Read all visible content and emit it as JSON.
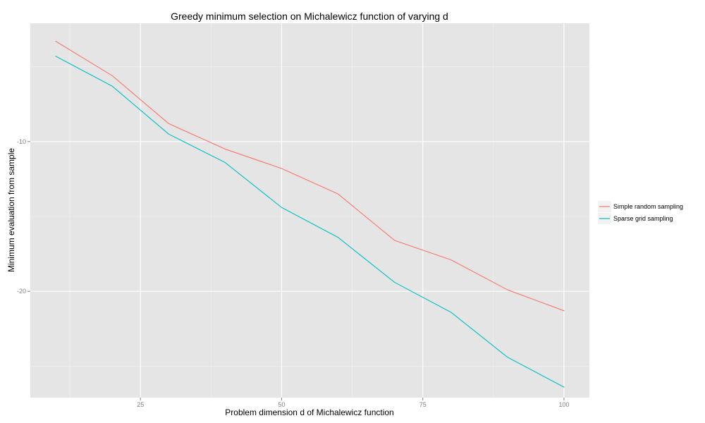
{
  "chart_data": {
    "type": "line",
    "title": "Greedy minimum selection on Michalewicz function of varying d",
    "xlabel": "Problem dimension d of Michalewicz function",
    "ylabel": "Minimum evaluation from sample",
    "x": [
      10,
      20,
      30,
      40,
      50,
      60,
      70,
      80,
      90,
      100
    ],
    "xlim": [
      5.5,
      104.5
    ],
    "ylim": [
      -27.1,
      -2.1
    ],
    "x_ticks": [
      25,
      50,
      75,
      100
    ],
    "x_tick_labels": [
      "25",
      "50",
      "75",
      "100"
    ],
    "y_ticks": [
      -10,
      -20
    ],
    "y_tick_labels": [
      "-10",
      "-20"
    ],
    "grid": true,
    "legend_position": "right",
    "series": [
      {
        "name": "Simple random sampling",
        "color": "#F8766D",
        "values": [
          -3.3,
          -5.6,
          -8.8,
          -10.5,
          -11.8,
          -13.5,
          -16.6,
          -17.9,
          -19.9,
          -21.3
        ]
      },
      {
        "name": "Sparse grid sampling",
        "color": "#00BFC4",
        "values": [
          -4.3,
          -6.3,
          -9.5,
          -11.4,
          -14.4,
          -16.4,
          -19.4,
          -21.4,
          -24.4,
          -26.4
        ]
      }
    ]
  }
}
